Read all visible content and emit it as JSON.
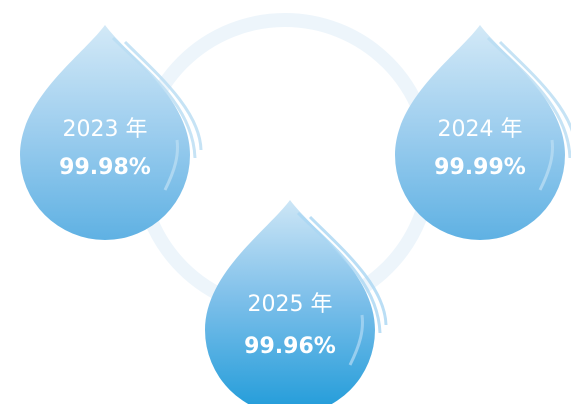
{
  "nodes": [
    {
      "year": "2023 年",
      "value": "99.98%"
    },
    {
      "year": "2024 年",
      "value": "99.99%"
    },
    {
      "year": "2025 年",
      "value": "99.96%"
    }
  ]
}
